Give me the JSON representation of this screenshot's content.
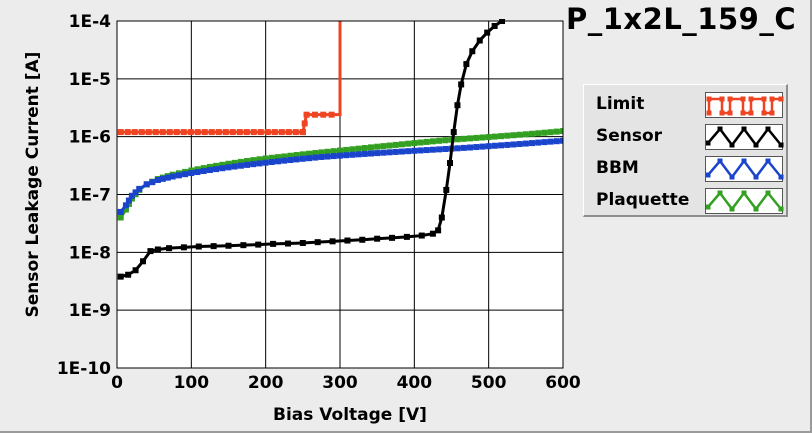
{
  "chart_data": {
    "type": "line",
    "title": "P_1x2L_159_C",
    "xlabel": "Bias Voltage [V]",
    "ylabel": "Sensor Leakage Current [A]",
    "xlim": [
      0,
      600
    ],
    "ylim": [
      1e-10,
      0.0001
    ],
    "yscale": "log",
    "grid": true,
    "legend_position": "right",
    "xticks": [
      "0",
      "100",
      "200",
      "300",
      "400",
      "500",
      "600"
    ],
    "yticks": [
      "1E-4",
      "1E-5",
      "1E-6",
      "1E-7",
      "1E-8",
      "1E-9",
      "1E-10"
    ],
    "series": [
      {
        "name": "Limit",
        "color": "#ee4422",
        "step": true,
        "points": [
          [
            5,
            1.2e-06
          ],
          [
            250,
            1.2e-06
          ],
          [
            250,
            1.2e-06
          ],
          [
            255,
            2.4e-06
          ],
          [
            300,
            2.4e-06
          ],
          [
            300,
            0.0001
          ]
        ]
      },
      {
        "name": "Sensor",
        "color": "#000000",
        "points": [
          [
            5,
            3.8e-09
          ],
          [
            15,
            4.1e-09
          ],
          [
            25,
            4.9e-09
          ],
          [
            35,
            7e-09
          ],
          [
            45,
            1.05e-08
          ],
          [
            55,
            1.12e-08
          ],
          [
            70,
            1.18e-08
          ],
          [
            90,
            1.22e-08
          ],
          [
            110,
            1.26e-08
          ],
          [
            130,
            1.28e-08
          ],
          [
            150,
            1.3e-08
          ],
          [
            170,
            1.33e-08
          ],
          [
            190,
            1.36e-08
          ],
          [
            210,
            1.4e-08
          ],
          [
            230,
            1.42e-08
          ],
          [
            250,
            1.45e-08
          ],
          [
            270,
            1.5e-08
          ],
          [
            290,
            1.55e-08
          ],
          [
            310,
            1.6e-08
          ],
          [
            330,
            1.65e-08
          ],
          [
            350,
            1.72e-08
          ],
          [
            370,
            1.78e-08
          ],
          [
            390,
            1.85e-08
          ],
          [
            410,
            1.95e-08
          ],
          [
            425,
            2.1e-08
          ],
          [
            432,
            2.4e-08
          ],
          [
            437,
            4e-08
          ],
          [
            443,
            1.2e-07
          ],
          [
            448,
            3.5e-07
          ],
          [
            453,
            1.2e-06
          ],
          [
            458,
            3.5e-06
          ],
          [
            463,
            8e-06
          ],
          [
            470,
            1.8e-05
          ],
          [
            478,
            3e-05
          ],
          [
            488,
            4.6e-05
          ],
          [
            498,
            6.3e-05
          ],
          [
            508,
            8.2e-05
          ],
          [
            518,
            0.0001
          ]
        ]
      },
      {
        "name": "BBM",
        "color": "#1a44cc",
        "points": [
          [
            5,
            5e-08
          ],
          [
            12,
            6.5e-08
          ],
          [
            20,
            9.5e-08
          ],
          [
            30,
            1.25e-07
          ],
          [
            40,
            1.5e-07
          ],
          [
            55,
            1.78e-07
          ],
          [
            75,
            2.05e-07
          ],
          [
            100,
            2.35e-07
          ],
          [
            125,
            2.65e-07
          ],
          [
            150,
            2.95e-07
          ],
          [
            175,
            3.25e-07
          ],
          [
            200,
            3.55e-07
          ],
          [
            225,
            3.85e-07
          ],
          [
            250,
            4.15e-07
          ],
          [
            275,
            4.45e-07
          ],
          [
            300,
            4.7e-07
          ],
          [
            325,
            4.95e-07
          ],
          [
            350,
            5.2e-07
          ],
          [
            375,
            5.45e-07
          ],
          [
            400,
            5.7e-07
          ],
          [
            425,
            5.95e-07
          ],
          [
            450,
            6.2e-07
          ],
          [
            475,
            6.5e-07
          ],
          [
            500,
            6.85e-07
          ],
          [
            525,
            7.2e-07
          ],
          [
            550,
            7.6e-07
          ],
          [
            575,
            8.05e-07
          ],
          [
            600,
            8.5e-07
          ]
        ]
      },
      {
        "name": "Plaquette",
        "color": "#33a022",
        "points": [
          [
            5,
            4e-08
          ],
          [
            12,
            5.5e-08
          ],
          [
            20,
            8.5e-08
          ],
          [
            30,
            1.2e-07
          ],
          [
            40,
            1.5e-07
          ],
          [
            55,
            1.85e-07
          ],
          [
            75,
            2.2e-07
          ],
          [
            100,
            2.6e-07
          ],
          [
            125,
            3e-07
          ],
          [
            150,
            3.4e-07
          ],
          [
            175,
            3.8e-07
          ],
          [
            200,
            4.2e-07
          ],
          [
            225,
            4.55e-07
          ],
          [
            250,
            4.95e-07
          ],
          [
            275,
            5.35e-07
          ],
          [
            300,
            5.75e-07
          ],
          [
            325,
            6.2e-07
          ],
          [
            350,
            6.7e-07
          ],
          [
            375,
            7.2e-07
          ],
          [
            400,
            7.75e-07
          ],
          [
            425,
            8.3e-07
          ],
          [
            450,
            8.85e-07
          ],
          [
            475,
            9.35e-07
          ],
          [
            500,
            9.85e-07
          ],
          [
            525,
            1.04e-06
          ],
          [
            550,
            1.1e-06
          ],
          [
            575,
            1.17e-06
          ],
          [
            600,
            1.25e-06
          ]
        ]
      }
    ]
  },
  "legend_items": [
    {
      "label": "Limit",
      "color": "#ee4422",
      "icon": "square-wave-icon"
    },
    {
      "label": "Sensor",
      "color": "#000000",
      "icon": "triangle-wave-icon"
    },
    {
      "label": "BBM",
      "color": "#1a44cc",
      "icon": "triangle-wave-icon"
    },
    {
      "label": "Plaquette",
      "color": "#33a022",
      "icon": "triangle-wave-icon"
    }
  ]
}
